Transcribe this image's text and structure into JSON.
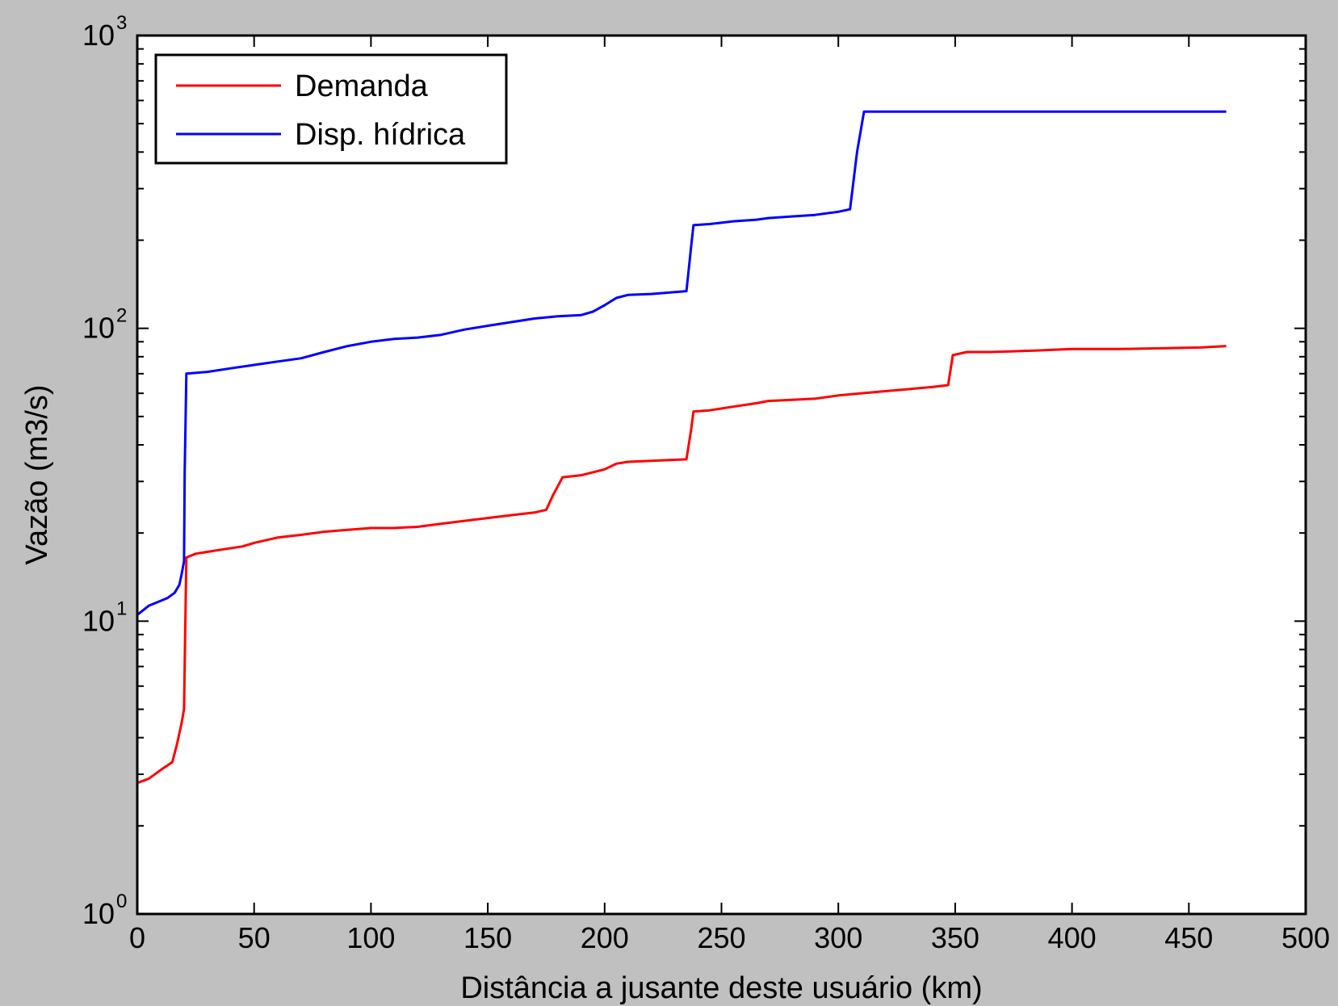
{
  "chart_data": {
    "type": "line",
    "title": "",
    "xlabel": "Distância a jusante deste usuário (km)",
    "ylabel": "Vazão (m3/s)",
    "xlim": [
      0,
      500
    ],
    "ylim": [
      1,
      1000
    ],
    "yscale": "log",
    "grid": false,
    "legend_position": "top-left",
    "x_ticks": [
      "0",
      "50",
      "100",
      "150",
      "200",
      "250",
      "300",
      "350",
      "400",
      "450",
      "500"
    ],
    "y_ticks": [
      {
        "base": "10",
        "exp": "0",
        "value": 1
      },
      {
        "base": "10",
        "exp": "1",
        "value": 10
      },
      {
        "base": "10",
        "exp": "2",
        "value": 100
      },
      {
        "base": "10",
        "exp": "3",
        "value": 1000
      }
    ],
    "series": [
      {
        "name": "Demanda",
        "color": "#ff0000",
        "points": [
          [
            0,
            2.8
          ],
          [
            5,
            2.9
          ],
          [
            10,
            3.1
          ],
          [
            15,
            3.3
          ],
          [
            17,
            3.8
          ],
          [
            19,
            4.5
          ],
          [
            20,
            5
          ],
          [
            20.5,
            9
          ],
          [
            21,
            16.5
          ],
          [
            25,
            17
          ],
          [
            35,
            17.5
          ],
          [
            45,
            18
          ],
          [
            50,
            18.5
          ],
          [
            60,
            19.3
          ],
          [
            70,
            19.7
          ],
          [
            80,
            20.2
          ],
          [
            90,
            20.5
          ],
          [
            100,
            20.8
          ],
          [
            110,
            20.8
          ],
          [
            120,
            21
          ],
          [
            130,
            21.5
          ],
          [
            140,
            22
          ],
          [
            150,
            22.5
          ],
          [
            160,
            23
          ],
          [
            170,
            23.5
          ],
          [
            175,
            24
          ],
          [
            178,
            27
          ],
          [
            182,
            31
          ],
          [
            190,
            31.5
          ],
          [
            200,
            33
          ],
          [
            205,
            34.5
          ],
          [
            210,
            35
          ],
          [
            220,
            35.3
          ],
          [
            235,
            35.7
          ],
          [
            237,
            45
          ],
          [
            238,
            52
          ],
          [
            245,
            52.5
          ],
          [
            255,
            54
          ],
          [
            265,
            55.5
          ],
          [
            270,
            56.5
          ],
          [
            280,
            57
          ],
          [
            290,
            57.5
          ],
          [
            300,
            59
          ],
          [
            310,
            60
          ],
          [
            320,
            61
          ],
          [
            330,
            62
          ],
          [
            340,
            63
          ],
          [
            347,
            64
          ],
          [
            349,
            81
          ],
          [
            355,
            83
          ],
          [
            365,
            83
          ],
          [
            375,
            83.5
          ],
          [
            385,
            84
          ],
          [
            400,
            85
          ],
          [
            420,
            85
          ],
          [
            440,
            85.5
          ],
          [
            455,
            86
          ],
          [
            466,
            87
          ]
        ]
      },
      {
        "name": "Disp. hídrica",
        "color": "#0000ff",
        "points": [
          [
            0,
            10.5
          ],
          [
            5,
            11.3
          ],
          [
            13,
            12
          ],
          [
            16,
            12.5
          ],
          [
            18,
            13.3
          ],
          [
            19,
            14.5
          ],
          [
            20,
            16
          ],
          [
            20.3,
            32
          ],
          [
            21,
            70
          ],
          [
            30,
            71
          ],
          [
            40,
            73
          ],
          [
            50,
            75
          ],
          [
            60,
            77
          ],
          [
            70,
            79
          ],
          [
            80,
            83
          ],
          [
            90,
            87
          ],
          [
            100,
            90
          ],
          [
            110,
            92
          ],
          [
            120,
            93
          ],
          [
            130,
            95
          ],
          [
            140,
            99
          ],
          [
            150,
            102
          ],
          [
            160,
            105
          ],
          [
            170,
            108
          ],
          [
            180,
            110
          ],
          [
            190,
            111
          ],
          [
            195,
            114
          ],
          [
            200,
            120
          ],
          [
            205,
            127
          ],
          [
            210,
            130
          ],
          [
            220,
            131
          ],
          [
            235,
            134
          ],
          [
            237,
            190
          ],
          [
            238,
            225
          ],
          [
            245,
            227
          ],
          [
            255,
            232
          ],
          [
            265,
            235
          ],
          [
            270,
            238
          ],
          [
            280,
            241
          ],
          [
            290,
            244
          ],
          [
            300,
            250
          ],
          [
            305,
            255
          ],
          [
            308,
            400
          ],
          [
            311,
            550
          ],
          [
            320,
            550
          ],
          [
            350,
            550
          ],
          [
            400,
            550
          ],
          [
            450,
            550
          ],
          [
            466,
            550
          ]
        ]
      }
    ]
  }
}
